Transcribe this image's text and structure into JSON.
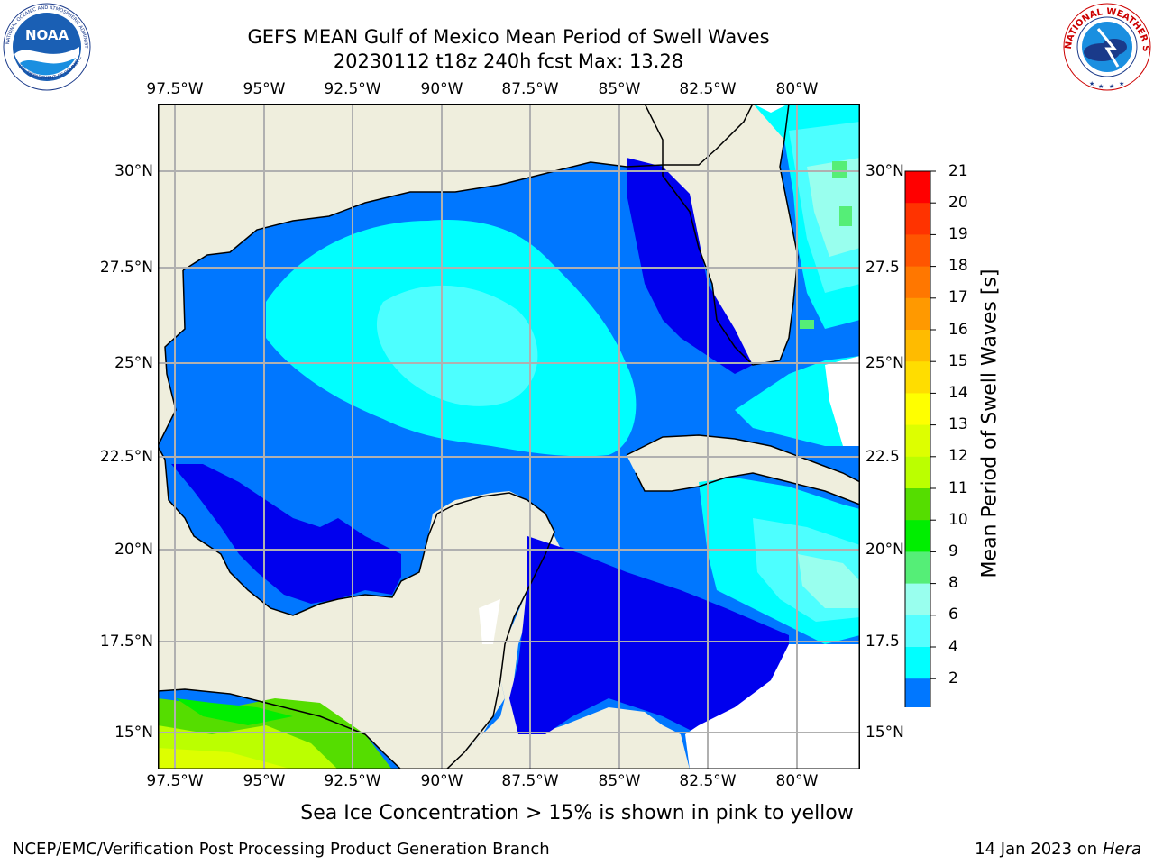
{
  "header": {
    "title_line1": "GEFS MEAN Gulf of Mexico Mean Period of Swell Waves",
    "title_line2": "20230112 t18z 240h fcst   Max: 13.28"
  },
  "map": {
    "lon_labels": [
      "97.5°W",
      "95°W",
      "92.5°W",
      "90°W",
      "87.5°W",
      "85°W",
      "82.5°W",
      "80°W"
    ],
    "lat_labels": [
      "30°N",
      "27.5°N",
      "25°N",
      "22.5°N",
      "20°N",
      "17.5°N",
      "15°N"
    ],
    "lat_labels_right": [
      "30°N",
      "27.5",
      "25°N",
      "22.5",
      "20°N",
      "17.5",
      "15°N"
    ]
  },
  "colorbar": {
    "label": "Mean Period of Swell Waves [s]",
    "ticks": [
      "21",
      "20",
      "19",
      "18",
      "17",
      "16",
      "15",
      "14",
      "13",
      "12",
      "11",
      "10",
      "9",
      "8",
      "6",
      "4",
      "2"
    ],
    "colors": [
      "#ff0000",
      "#ff3300",
      "#ff5500",
      "#ff7700",
      "#ff9900",
      "#ffbb00",
      "#ffdd00",
      "#ffff00",
      "#ddff00",
      "#bbff00",
      "#55dd00",
      "#00ee00",
      "#55ee77",
      "#99ffee",
      "#55ffff",
      "#00ffff",
      "#0077ff"
    ],
    "extend_color": "#0000ee"
  },
  "note": "Sea Ice Concentration > 15% is shown in pink to yellow",
  "footer": {
    "left": "NCEP/EMC/Verification Post Processing Product Generation Branch",
    "right_prefix": "14 Jan 2023 on ",
    "right_host": "Hera"
  },
  "logos": {
    "noara_text": "NOAA",
    "noaa_ring": "NATIONAL OCEANIC AND ATMOSPHERIC ADMINISTRATION",
    "noaa_ring_bottom": "U.S. DEPARTMENT OF COMMERCE",
    "nws_ring": "NATIONAL WEATHER SERVICE"
  }
}
